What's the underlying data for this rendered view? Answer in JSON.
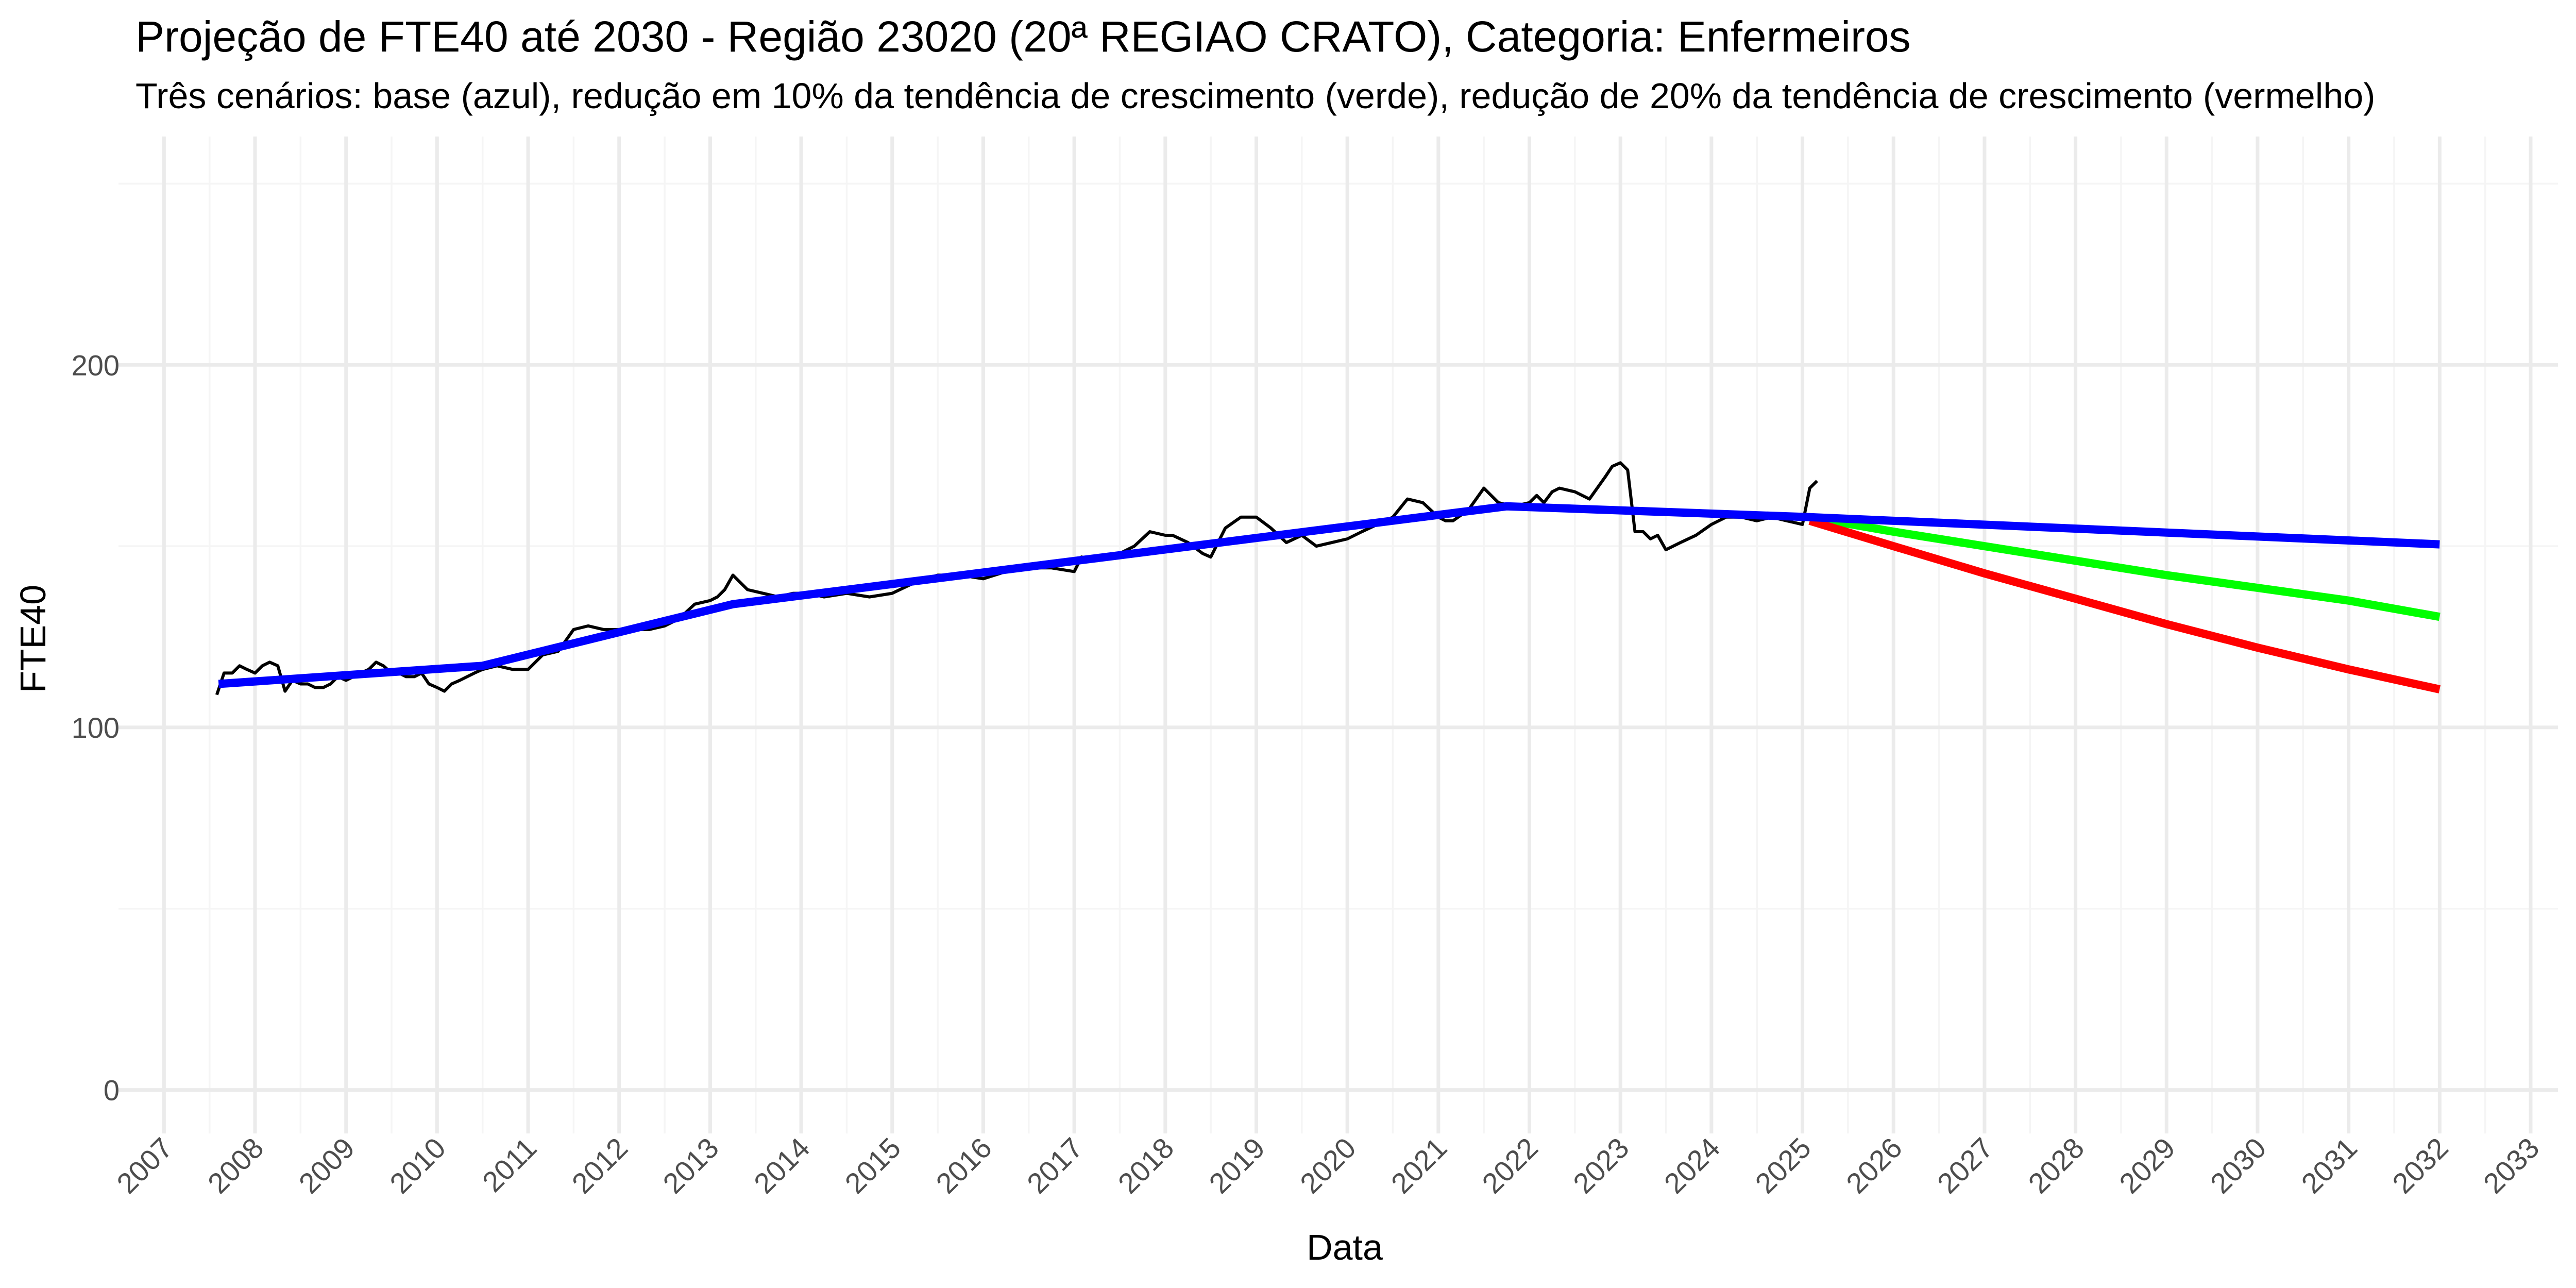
{
  "chart_data": {
    "type": "line",
    "title": "Projeção de FTE40 até 2030 - Região 23020 (20ª REGIAO CRATO), Categoria: Enfermeiros",
    "subtitle": "Três cenários: base (azul), redução em 10% da tendência de crescimento (verde), redução de 20% da tendência de crescimento (vermelho)",
    "xlabel": "Data",
    "ylabel": "FTE40",
    "xlim": [
      2006.5,
      2033.3
    ],
    "ylim": [
      -12,
      263
    ],
    "x_ticks": [
      2007,
      2008,
      2009,
      2010,
      2011,
      2012,
      2013,
      2014,
      2015,
      2016,
      2017,
      2018,
      2019,
      2020,
      2021,
      2022,
      2023,
      2024,
      2025,
      2026,
      2027,
      2028,
      2029,
      2030,
      2031,
      2032,
      2033
    ],
    "x_tick_labels": [
      "2007",
      "2008",
      "2009",
      "2010",
      "2011",
      "2012",
      "2013",
      "2014",
      "2015",
      "2016",
      "2017",
      "2018",
      "2019",
      "2020",
      "2021",
      "2022",
      "2023",
      "2024",
      "2025",
      "2026",
      "2027",
      "2028",
      "2029",
      "2030",
      "2031",
      "2032",
      "2033"
    ],
    "y_ticks": [
      0,
      100,
      200
    ],
    "y_tick_labels": [
      "0",
      "100",
      "200"
    ],
    "y_minor": [
      50,
      150,
      250
    ],
    "grid": true,
    "legend": "none",
    "colors": {
      "observed": "#000000",
      "base": "#0000ff",
      "green": "#00ff00",
      "red": "#ff0000"
    },
    "series": [
      {
        "id": "observed",
        "x": [
          2007.58,
          2007.66,
          2007.75,
          2007.83,
          2007.91,
          2008.0,
          2008.08,
          2008.16,
          2008.25,
          2008.33,
          2008.41,
          2008.5,
          2008.58,
          2008.66,
          2008.75,
          2008.83,
          2008.91,
          2009.0,
          2009.08,
          2009.16,
          2009.25,
          2009.33,
          2009.41,
          2009.5,
          2009.58,
          2009.66,
          2009.75,
          2009.83,
          2009.91,
          2010.0,
          2010.08,
          2010.16,
          2010.25,
          2010.33,
          2010.41,
          2010.5,
          2010.66,
          2010.83,
          2011.0,
          2011.16,
          2011.33,
          2011.5,
          2011.66,
          2011.83,
          2012.0,
          2012.16,
          2012.33,
          2012.5,
          2012.66,
          2012.83,
          2013.0,
          2013.08,
          2013.16,
          2013.25,
          2013.41,
          2013.58,
          2013.75,
          2013.91,
          2014.08,
          2014.25,
          2014.5,
          2014.75,
          2015.0,
          2015.25,
          2015.5,
          2015.75,
          2016.0,
          2016.25,
          2016.5,
          2016.75,
          2017.0,
          2017.08,
          2017.25,
          2017.5,
          2017.66,
          2017.83,
          2018.0,
          2018.08,
          2018.25,
          2018.41,
          2018.5,
          2018.66,
          2018.83,
          2019.0,
          2019.16,
          2019.33,
          2019.5,
          2019.66,
          2019.83,
          2020.0,
          2020.16,
          2020.33,
          2020.5,
          2020.66,
          2020.83,
          2021.0,
          2021.08,
          2021.16,
          2021.33,
          2021.5,
          2021.66,
          2021.83,
          2022.0,
          2022.08,
          2022.16,
          2022.25,
          2022.33,
          2022.5,
          2022.66,
          2022.83,
          2022.91,
          2023.0,
          2023.08,
          2023.16,
          2023.25,
          2023.33,
          2023.41,
          2023.5,
          2023.66,
          2023.83,
          2024.0,
          2024.16,
          2024.33,
          2024.5,
          2024.66,
          2024.83,
          2025.0,
          2025.08,
          2025.16
        ],
        "y": [
          109,
          115,
          115,
          117,
          116,
          115,
          117,
          118,
          117,
          110,
          113,
          112,
          112,
          111,
          111,
          112,
          114,
          113,
          114,
          115,
          116,
          118,
          117,
          115,
          115,
          114,
          114,
          115,
          112,
          111,
          110,
          112,
          113,
          114,
          115,
          116,
          117,
          116,
          116,
          120,
          121,
          127,
          128,
          127,
          127,
          127,
          127,
          128,
          130,
          134,
          135,
          136,
          138,
          142,
          138,
          137,
          136,
          137,
          137,
          136,
          137,
          136,
          137,
          140,
          142,
          142,
          141,
          143,
          144,
          144,
          143,
          147,
          146,
          148,
          150,
          154,
          153,
          153,
          151,
          148,
          147,
          155,
          158,
          158,
          155,
          151,
          153,
          150,
          151,
          152,
          154,
          156,
          158,
          163,
          162,
          158,
          157,
          157,
          160,
          166,
          162,
          161,
          162,
          164,
          162,
          165,
          166,
          165,
          163,
          169,
          172,
          173,
          171,
          154,
          154,
          152,
          153,
          149,
          151,
          153,
          156,
          158,
          158,
          157,
          158,
          157,
          156,
          166,
          168
        ]
      },
      {
        "id": "base",
        "x": [
          2007.6,
          2010.5,
          2013.25,
          2021.75,
          2025.08,
          2032.0
        ],
        "y": [
          112,
          117,
          134,
          161,
          158,
          150.5
        ]
      },
      {
        "id": "green",
        "x": [
          2025.08,
          2026.0,
          2027.0,
          2028.0,
          2029.0,
          2030.0,
          2031.0,
          2032.0
        ],
        "y": [
          158,
          154,
          150,
          146,
          142,
          138.5,
          135,
          130.5
        ]
      },
      {
        "id": "red",
        "x": [
          2025.08,
          2026.0,
          2027.0,
          2028.0,
          2029.0,
          2030.0,
          2031.0,
          2032.0
        ],
        "y": [
          157,
          150,
          142.5,
          135.5,
          128.5,
          122,
          116,
          110.5
        ]
      }
    ]
  }
}
